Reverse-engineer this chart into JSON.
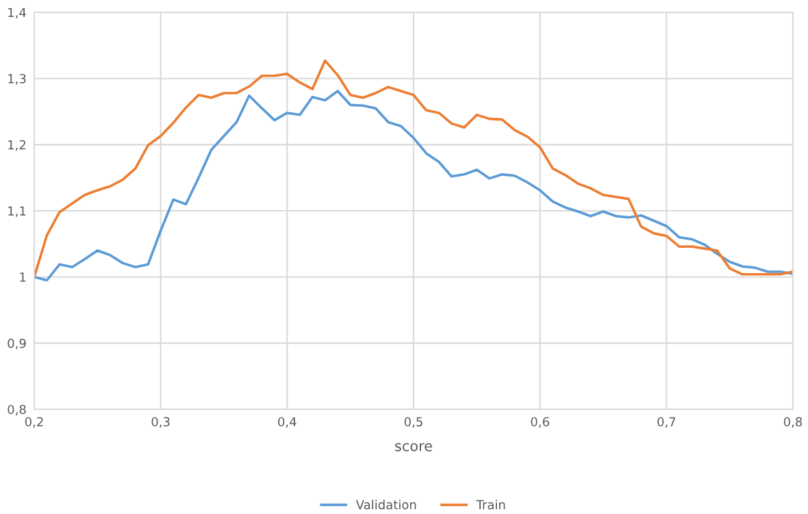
{
  "chart_data": {
    "type": "line",
    "xlabel": "score",
    "x": [
      0.2,
      0.21,
      0.22,
      0.23,
      0.24,
      0.25,
      0.26,
      0.27,
      0.28,
      0.29,
      0.3,
      0.31,
      0.32,
      0.33,
      0.34,
      0.35,
      0.36,
      0.37,
      0.38,
      0.39,
      0.4,
      0.41,
      0.42,
      0.43,
      0.44,
      0.45,
      0.46,
      0.47,
      0.48,
      0.49,
      0.5,
      0.51,
      0.52,
      0.53,
      0.54,
      0.55,
      0.56,
      0.57,
      0.58,
      0.59,
      0.6,
      0.61,
      0.62,
      0.63,
      0.64,
      0.65,
      0.66,
      0.67,
      0.68,
      0.69,
      0.7,
      0.71,
      0.72,
      0.73,
      0.74,
      0.75,
      0.76,
      0.77,
      0.78,
      0.79,
      0.8
    ],
    "series": [
      {
        "name": "Validation",
        "color": "#5b9bd5",
        "values": [
          1.0,
          0.995,
          1.019,
          1.015,
          1.027,
          1.04,
          1.033,
          1.021,
          1.015,
          1.019,
          1.07,
          1.117,
          1.11,
          1.15,
          1.192,
          1.213,
          1.234,
          1.274,
          1.255,
          1.237,
          1.248,
          1.245,
          1.272,
          1.267,
          1.281,
          1.26,
          1.259,
          1.255,
          1.234,
          1.228,
          1.21,
          1.187,
          1.174,
          1.152,
          1.155,
          1.162,
          1.149,
          1.155,
          1.153,
          1.143,
          1.131,
          1.114,
          1.105,
          1.099,
          1.092,
          1.099,
          1.092,
          1.09,
          1.093,
          1.085,
          1.077,
          1.06,
          1.057,
          1.049,
          1.035,
          1.023,
          1.016,
          1.014,
          1.008,
          1.008,
          1.005
        ]
      },
      {
        "name": "Train",
        "color": "#ed7d31",
        "values": [
          1.0,
          1.063,
          1.098,
          1.111,
          1.124,
          1.131,
          1.137,
          1.147,
          1.164,
          1.199,
          1.213,
          1.233,
          1.256,
          1.275,
          1.271,
          1.278,
          1.278,
          1.288,
          1.304,
          1.304,
          1.307,
          1.294,
          1.284,
          1.327,
          1.305,
          1.275,
          1.271,
          1.278,
          1.287,
          1.281,
          1.275,
          1.252,
          1.248,
          1.232,
          1.226,
          1.245,
          1.239,
          1.238,
          1.222,
          1.212,
          1.196,
          1.164,
          1.154,
          1.141,
          1.134,
          1.124,
          1.121,
          1.118,
          1.076,
          1.066,
          1.062,
          1.046,
          1.046,
          1.043,
          1.04,
          1.013,
          1.004,
          1.004,
          1.004,
          1.004,
          1.008
        ]
      }
    ],
    "xlim": [
      0.2,
      0.8
    ],
    "xticks": [
      {
        "value": 0.2,
        "label": "0,2"
      },
      {
        "value": 0.3,
        "label": "0,3"
      },
      {
        "value": 0.4,
        "label": "0,4"
      },
      {
        "value": 0.5,
        "label": "0,5"
      },
      {
        "value": 0.6,
        "label": "0,6"
      },
      {
        "value": 0.7,
        "label": "0,7"
      },
      {
        "value": 0.8,
        "label": "0,8"
      }
    ],
    "ylim": [
      0.8,
      1.4
    ],
    "yticks": [
      {
        "value": 0.8,
        "label": "0,8"
      },
      {
        "value": 0.9,
        "label": "0,9"
      },
      {
        "value": 1.0,
        "label": "1"
      },
      {
        "value": 1.1,
        "label": "1,1"
      },
      {
        "value": 1.2,
        "label": "1,2"
      },
      {
        "value": 1.3,
        "label": "1,3"
      },
      {
        "value": 1.4,
        "label": "1,4"
      }
    ],
    "grid": true,
    "legend": "bottom",
    "marker": "none",
    "line_style": "solid"
  }
}
